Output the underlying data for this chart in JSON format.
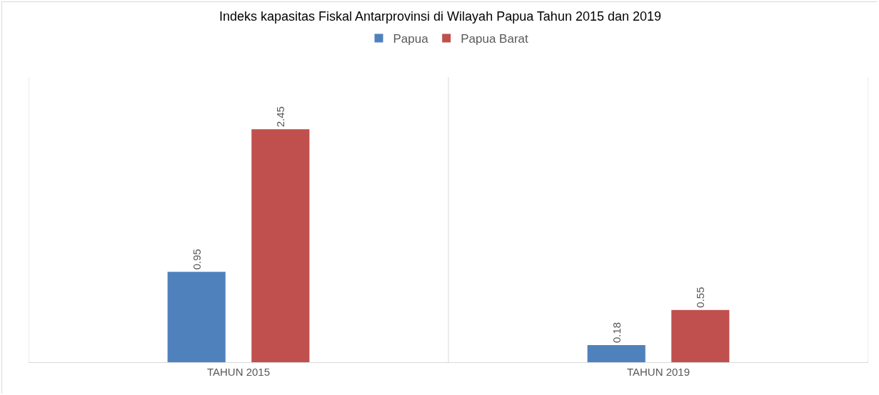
{
  "chart_data": {
    "type": "bar",
    "title": "Indeks kapasitas Fiskal Antarprovinsi di Wilayah Papua Tahun 2015 dan 2019",
    "categories": [
      "TAHUN 2015",
      "TAHUN 2019"
    ],
    "series": [
      {
        "name": "Papua",
        "color": "#4f81bd",
        "values": [
          0.95,
          0.18
        ]
      },
      {
        "name": "Papua Barat",
        "color": "#c0504d",
        "values": [
          2.45,
          0.55
        ]
      }
    ],
    "ylim": [
      0,
      3
    ],
    "data_labels": true,
    "grid": "x",
    "legend": "top"
  }
}
